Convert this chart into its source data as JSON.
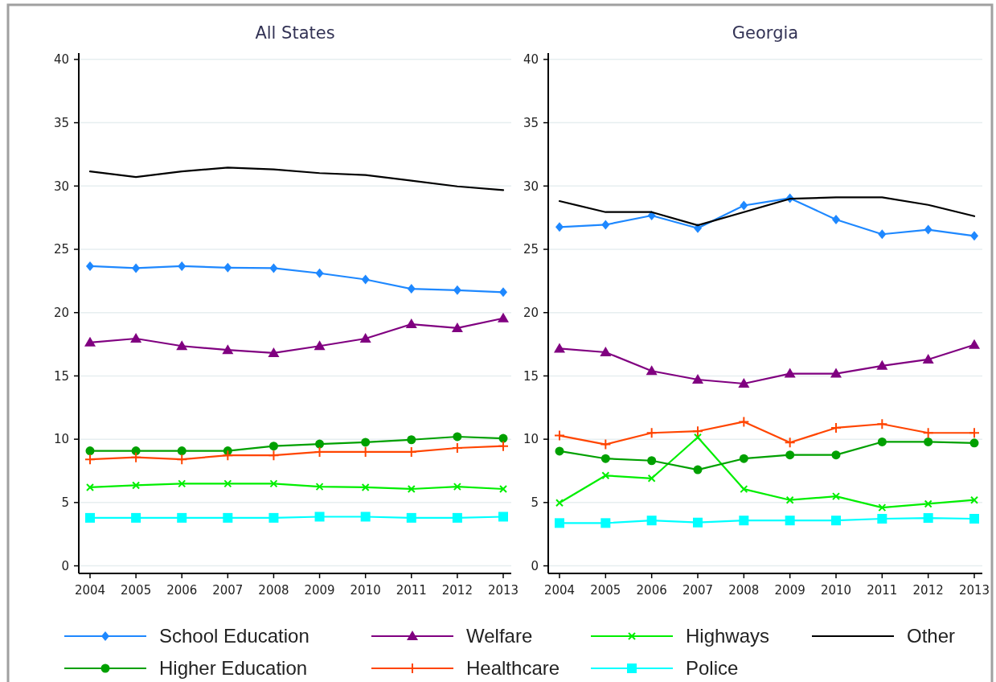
{
  "chart_data": [
    {
      "type": "line",
      "title": "All States",
      "categories": [
        "2004",
        "2005",
        "2006",
        "2007",
        "2008",
        "2009",
        "2010",
        "2011",
        "2012",
        "2013"
      ],
      "ylim": [
        -0.6,
        40.5
      ],
      "yticks": [
        0,
        5,
        10,
        15,
        20,
        25,
        30,
        35,
        40
      ],
      "grid": "y",
      "legend": "bottom",
      "series": [
        {
          "name": "School Education",
          "color": "#1e88ff",
          "marker": "diamond",
          "values": [
            23.67,
            23.51,
            23.67,
            23.55,
            23.51,
            23.11,
            22.62,
            21.88,
            21.77,
            21.61
          ]
        },
        {
          "name": "Welfare",
          "color": "#800080",
          "marker": "triangle",
          "values": [
            17.64,
            17.95,
            17.36,
            17.05,
            16.81,
            17.36,
            17.95,
            19.09,
            18.78,
            19.55
          ]
        },
        {
          "name": "Highways",
          "color": "#00ee00",
          "marker": "cross",
          "values": [
            6.2,
            6.36,
            6.49,
            6.49,
            6.49,
            6.25,
            6.2,
            6.07,
            6.25,
            6.07
          ]
        },
        {
          "name": "Other",
          "color": "#000000",
          "marker": "none",
          "values": [
            31.15,
            30.71,
            31.15,
            31.45,
            31.31,
            31.02,
            30.87,
            30.42,
            29.97,
            29.68
          ]
        },
        {
          "name": "Higher Education",
          "color": "#00a000",
          "marker": "circle",
          "values": [
            9.08,
            9.08,
            9.08,
            9.08,
            9.46,
            9.62,
            9.76,
            9.96,
            10.2,
            10.07
          ]
        },
        {
          "name": "Healthcare",
          "color": "#ff4500",
          "marker": "plus",
          "values": [
            8.41,
            8.57,
            8.41,
            8.73,
            8.73,
            9.0,
            9.0,
            9.0,
            9.31,
            9.46
          ]
        },
        {
          "name": "Police",
          "color": "#00ffff",
          "marker": "square",
          "values": [
            3.79,
            3.79,
            3.79,
            3.79,
            3.79,
            3.88,
            3.88,
            3.79,
            3.79,
            3.88
          ]
        }
      ]
    },
    {
      "type": "line",
      "title": "Georgia",
      "categories": [
        "2004",
        "2005",
        "2006",
        "2007",
        "2008",
        "2009",
        "2010",
        "2011",
        "2012",
        "2013"
      ],
      "ylim": [
        -0.6,
        40.5
      ],
      "yticks": [
        0,
        5,
        10,
        15,
        20,
        25,
        30,
        35,
        40
      ],
      "grid": "y",
      "series": [
        {
          "name": "School Education",
          "color": "#1e88ff",
          "marker": "diamond",
          "values": [
            26.76,
            26.94,
            27.67,
            26.67,
            28.46,
            29.04,
            27.35,
            26.19,
            26.55,
            26.06
          ]
        },
        {
          "name": "Welfare",
          "color": "#800080",
          "marker": "triangle",
          "values": [
            17.16,
            16.87,
            15.39,
            14.71,
            14.39,
            15.18,
            15.18,
            15.8,
            16.3,
            17.46
          ]
        },
        {
          "name": "Highways",
          "color": "#00ee00",
          "marker": "cross",
          "values": [
            4.97,
            7.13,
            6.91,
            10.15,
            6.06,
            5.2,
            5.49,
            4.6,
            4.9,
            5.2
          ]
        },
        {
          "name": "Other",
          "color": "#000000",
          "marker": "none",
          "values": [
            28.81,
            27.94,
            27.94,
            26.9,
            27.94,
            28.99,
            29.1,
            29.1,
            28.51,
            27.62
          ]
        },
        {
          "name": "Higher Education",
          "color": "#00a000",
          "marker": "circle",
          "values": [
            9.06,
            8.47,
            8.31,
            7.59,
            8.47,
            8.76,
            8.76,
            9.79,
            9.79,
            9.7
          ]
        },
        {
          "name": "Healthcare",
          "color": "#ff4500",
          "marker": "plus",
          "values": [
            10.29,
            9.59,
            10.5,
            10.63,
            11.38,
            9.74,
            10.9,
            11.2,
            10.5,
            10.5
          ]
        },
        {
          "name": "Police",
          "color": "#00ffff",
          "marker": "square",
          "values": [
            3.38,
            3.38,
            3.58,
            3.42,
            3.58,
            3.58,
            3.58,
            3.72,
            3.78,
            3.72
          ]
        }
      ]
    }
  ]
}
